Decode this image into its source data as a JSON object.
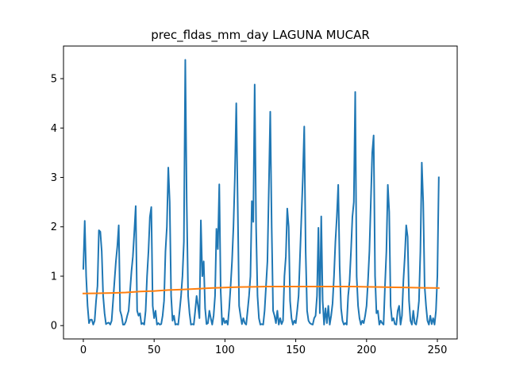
{
  "chart_data": {
    "type": "line",
    "title": "prec_fldas_mm_day LAGUNA MUCAR",
    "xlabel": "",
    "ylabel": "",
    "xlim": [
      -14,
      264
    ],
    "ylim": [
      -0.27,
      5.66
    ],
    "x_ticks": [
      0,
      50,
      100,
      150,
      200,
      250
    ],
    "y_ticks": [
      0,
      1,
      2,
      3,
      4,
      5
    ],
    "grid": false,
    "series": [
      {
        "color": "#1f77b4",
        "points": [
          [
            0,
            1.15
          ],
          [
            1,
            2.12
          ],
          [
            2,
            1.0
          ],
          [
            3,
            0.4
          ],
          [
            4,
            0.05
          ],
          [
            5,
            0.12
          ],
          [
            6,
            0.12
          ],
          [
            7,
            0.02
          ],
          [
            8,
            0.1
          ],
          [
            9,
            0.5
          ],
          [
            10,
            0.8
          ],
          [
            11,
            1.93
          ],
          [
            12,
            1.9
          ],
          [
            13,
            1.5
          ],
          [
            14,
            0.6
          ],
          [
            15,
            0.25
          ],
          [
            16,
            0.03
          ],
          [
            17,
            0.05
          ],
          [
            18,
            0.06
          ],
          [
            19,
            0.02
          ],
          [
            20,
            0.1
          ],
          [
            21,
            0.5
          ],
          [
            22,
            0.9
          ],
          [
            23,
            1.3
          ],
          [
            24,
            1.6
          ],
          [
            25,
            2.03
          ],
          [
            26,
            0.3
          ],
          [
            27,
            0.2
          ],
          [
            28,
            0.02
          ],
          [
            29,
            0.02
          ],
          [
            30,
            0.08
          ],
          [
            31,
            0.2
          ],
          [
            32,
            0.3
          ],
          [
            33,
            0.7
          ],
          [
            34,
            1.1
          ],
          [
            35,
            1.4
          ],
          [
            36,
            1.9
          ],
          [
            37,
            2.42
          ],
          [
            38,
            0.3
          ],
          [
            39,
            0.2
          ],
          [
            40,
            0.25
          ],
          [
            41,
            0.03
          ],
          [
            42,
            0.05
          ],
          [
            43,
            0.02
          ],
          [
            44,
            0.3
          ],
          [
            45,
            1.0
          ],
          [
            46,
            1.5
          ],
          [
            47,
            2.2
          ],
          [
            48,
            2.4
          ],
          [
            49,
            0.4
          ],
          [
            50,
            0.15
          ],
          [
            51,
            0.3
          ],
          [
            52,
            0.02
          ],
          [
            53,
            0.05
          ],
          [
            54,
            0.02
          ],
          [
            55,
            0.03
          ],
          [
            56,
            0.2
          ],
          [
            57,
            0.5
          ],
          [
            58,
            1.5
          ],
          [
            59,
            2.0
          ],
          [
            60,
            3.2
          ],
          [
            61,
            2.5
          ],
          [
            62,
            0.6
          ],
          [
            63,
            0.1
          ],
          [
            64,
            0.2
          ],
          [
            65,
            0.02
          ],
          [
            66,
            0.03
          ],
          [
            67,
            0.02
          ],
          [
            68,
            0.3
          ],
          [
            69,
            0.6
          ],
          [
            70,
            1.0
          ],
          [
            71,
            1.7
          ],
          [
            72,
            5.38
          ],
          [
            73,
            2.5
          ],
          [
            74,
            0.6
          ],
          [
            75,
            0.25
          ],
          [
            76,
            0.02
          ],
          [
            77,
            0.03
          ],
          [
            78,
            0.02
          ],
          [
            79,
            0.3
          ],
          [
            80,
            0.6
          ],
          [
            81,
            0.4
          ],
          [
            82,
            0.15
          ],
          [
            83,
            2.13
          ],
          [
            84,
            1.0
          ],
          [
            85,
            1.3
          ],
          [
            86,
            0.35
          ],
          [
            87,
            0.03
          ],
          [
            88,
            0.05
          ],
          [
            89,
            0.3
          ],
          [
            90,
            0.15
          ],
          [
            91,
            0.02
          ],
          [
            92,
            0.2
          ],
          [
            93,
            0.6
          ],
          [
            94,
            1.96
          ],
          [
            95,
            1.55
          ],
          [
            96,
            2.86
          ],
          [
            97,
            0.7
          ],
          [
            98,
            0.02
          ],
          [
            99,
            0.15
          ],
          [
            100,
            0.05
          ],
          [
            101,
            0.1
          ],
          [
            102,
            0.02
          ],
          [
            103,
            0.35
          ],
          [
            104,
            0.8
          ],
          [
            105,
            1.3
          ],
          [
            106,
            2.0
          ],
          [
            107,
            3.0
          ],
          [
            108,
            4.5
          ],
          [
            109,
            2.5
          ],
          [
            110,
            0.4
          ],
          [
            111,
            0.2
          ],
          [
            112,
            0.03
          ],
          [
            113,
            0.15
          ],
          [
            114,
            0.05
          ],
          [
            115,
            0.02
          ],
          [
            116,
            0.3
          ],
          [
            117,
            0.6
          ],
          [
            118,
            1.0
          ],
          [
            119,
            2.52
          ],
          [
            120,
            2.1
          ],
          [
            121,
            4.88
          ],
          [
            122,
            2.0
          ],
          [
            123,
            0.6
          ],
          [
            124,
            0.15
          ],
          [
            125,
            0.02
          ],
          [
            126,
            0.03
          ],
          [
            127,
            0.02
          ],
          [
            128,
            0.3
          ],
          [
            129,
            0.8
          ],
          [
            130,
            1.3
          ],
          [
            131,
            2.8
          ],
          [
            132,
            4.33
          ],
          [
            133,
            2.0
          ],
          [
            134,
            0.3
          ],
          [
            135,
            0.2
          ],
          [
            136,
            0.05
          ],
          [
            137,
            0.3
          ],
          [
            138,
            0.02
          ],
          [
            139,
            0.15
          ],
          [
            140,
            0.03
          ],
          [
            141,
            0.1
          ],
          [
            142,
            1.0
          ],
          [
            143,
            1.4
          ],
          [
            144,
            2.37
          ],
          [
            145,
            2.0
          ],
          [
            146,
            0.5
          ],
          [
            147,
            0.15
          ],
          [
            148,
            0.02
          ],
          [
            149,
            0.1
          ],
          [
            150,
            0.05
          ],
          [
            151,
            0.3
          ],
          [
            152,
            0.6
          ],
          [
            153,
            1.4
          ],
          [
            154,
            2.2
          ],
          [
            155,
            3.0
          ],
          [
            156,
            4.03
          ],
          [
            157,
            1.5
          ],
          [
            158,
            0.3
          ],
          [
            159,
            0.1
          ],
          [
            160,
            0.05
          ],
          [
            161,
            0.03
          ],
          [
            162,
            0.02
          ],
          [
            163,
            0.15
          ],
          [
            164,
            0.2
          ],
          [
            165,
            0.6
          ],
          [
            166,
            1.98
          ],
          [
            167,
            0.25
          ],
          [
            168,
            2.21
          ],
          [
            169,
            0.5
          ],
          [
            170,
            0.02
          ],
          [
            171,
            0.35
          ],
          [
            172,
            0.05
          ],
          [
            173,
            0.4
          ],
          [
            174,
            0.02
          ],
          [
            175,
            0.2
          ],
          [
            176,
            0.45
          ],
          [
            177,
            1.0
          ],
          [
            178,
            1.7
          ],
          [
            179,
            2.2
          ],
          [
            180,
            2.85
          ],
          [
            181,
            1.2
          ],
          [
            182,
            0.35
          ],
          [
            183,
            0.1
          ],
          [
            184,
            0.02
          ],
          [
            185,
            0.05
          ],
          [
            186,
            0.02
          ],
          [
            187,
            0.6
          ],
          [
            188,
            0.9
          ],
          [
            189,
            1.5
          ],
          [
            190,
            2.2
          ],
          [
            191,
            2.5
          ],
          [
            192,
            4.73
          ],
          [
            193,
            1.0
          ],
          [
            194,
            0.4
          ],
          [
            195,
            0.15
          ],
          [
            196,
            0.02
          ],
          [
            197,
            0.1
          ],
          [
            198,
            0.05
          ],
          [
            199,
            0.2
          ],
          [
            200,
            0.4
          ],
          [
            201,
            0.9
          ],
          [
            202,
            1.5
          ],
          [
            203,
            2.5
          ],
          [
            204,
            3.5
          ],
          [
            205,
            3.85
          ],
          [
            206,
            1.0
          ],
          [
            207,
            0.25
          ],
          [
            208,
            0.3
          ],
          [
            209,
            0.02
          ],
          [
            210,
            0.1
          ],
          [
            211,
            0.05
          ],
          [
            212,
            0.02
          ],
          [
            213,
            0.8
          ],
          [
            214,
            1.5
          ],
          [
            215,
            2.85
          ],
          [
            216,
            2.3
          ],
          [
            217,
            0.4
          ],
          [
            218,
            0.1
          ],
          [
            219,
            0.15
          ],
          [
            220,
            0.03
          ],
          [
            221,
            0.02
          ],
          [
            222,
            0.3
          ],
          [
            223,
            0.4
          ],
          [
            224,
            0.02
          ],
          [
            225,
            0.2
          ],
          [
            226,
            0.9
          ],
          [
            227,
            1.4
          ],
          [
            228,
            2.03
          ],
          [
            229,
            1.8
          ],
          [
            230,
            0.5
          ],
          [
            231,
            0.1
          ],
          [
            232,
            0.02
          ],
          [
            233,
            0.3
          ],
          [
            234,
            0.05
          ],
          [
            235,
            0.02
          ],
          [
            236,
            0.2
          ],
          [
            237,
            0.5
          ],
          [
            238,
            1.5
          ],
          [
            239,
            3.3
          ],
          [
            240,
            2.5
          ],
          [
            241,
            0.8
          ],
          [
            242,
            0.4
          ],
          [
            243,
            0.1
          ],
          [
            244,
            0.02
          ],
          [
            245,
            0.2
          ],
          [
            246,
            0.03
          ],
          [
            247,
            0.15
          ],
          [
            248,
            0.02
          ],
          [
            249,
            0.3
          ],
          [
            250,
            1.0
          ],
          [
            251,
            3.0
          ]
        ]
      },
      {
        "color": "#ff7f0e",
        "points": [
          [
            0,
            0.65
          ],
          [
            10,
            0.655
          ],
          [
            20,
            0.66
          ],
          [
            30,
            0.67
          ],
          [
            40,
            0.69
          ],
          [
            50,
            0.7
          ],
          [
            60,
            0.72
          ],
          [
            70,
            0.73
          ],
          [
            80,
            0.745
          ],
          [
            90,
            0.76
          ],
          [
            100,
            0.77
          ],
          [
            110,
            0.78
          ],
          [
            120,
            0.785
          ],
          [
            130,
            0.79
          ],
          [
            140,
            0.79
          ],
          [
            150,
            0.79
          ],
          [
            160,
            0.79
          ],
          [
            170,
            0.79
          ],
          [
            180,
            0.79
          ],
          [
            190,
            0.79
          ],
          [
            200,
            0.785
          ],
          [
            210,
            0.78
          ],
          [
            220,
            0.775
          ],
          [
            230,
            0.77
          ],
          [
            240,
            0.765
          ],
          [
            251,
            0.76
          ]
        ]
      }
    ]
  }
}
